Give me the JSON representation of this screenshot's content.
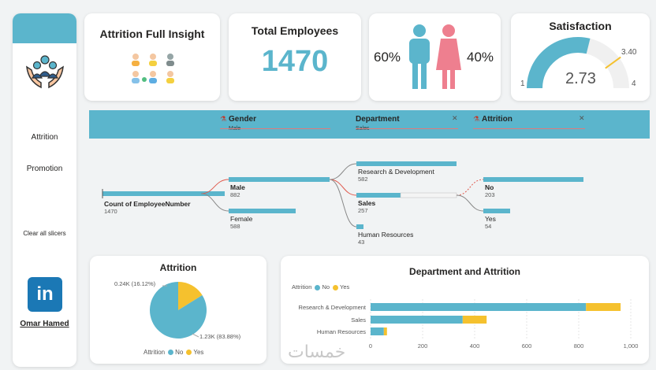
{
  "sidebar": {
    "nav_attrition": "Attrition",
    "nav_promotion": "Promotion",
    "clear_slicers": "Clear all slicers",
    "linkedin_glyph": "in",
    "author": "Omar Hamed"
  },
  "kpi": {
    "insight_title": "Attrition Full Insight",
    "total_title": "Total Employees",
    "total_value": "1470",
    "male_pct": "60%",
    "female_pct": "40%",
    "satisfaction_title": "Satisfaction",
    "satisfaction_value": "2.73",
    "satisfaction_target": "3.40",
    "satisfaction_min": "1",
    "satisfaction_max": "4"
  },
  "filters": [
    {
      "label": "Gender",
      "value": "Male"
    },
    {
      "label": "Department",
      "value": "Sales"
    },
    {
      "label": "Attrition",
      "value": ""
    }
  ],
  "tree": {
    "root_label": "Count of EmployeeNumber",
    "root_value": "1470",
    "male_label": "Male",
    "male_value": "882",
    "female_label": "Female",
    "female_value": "588",
    "rd_label": "Research & Development",
    "rd_value": "582",
    "sales_label": "Sales",
    "sales_value": "257",
    "hr_label": "Human Resources",
    "hr_value": "43",
    "no_label": "No",
    "no_value": "203",
    "yes_label": "Yes",
    "yes_value": "54"
  },
  "attrition_pie": {
    "title": "Attrition",
    "yes_label": "0.24K (16.12%)",
    "no_label": "1.23K (83.88%)",
    "legend_title": "Attrition",
    "legend_no": "No",
    "legend_yes": "Yes"
  },
  "dept_chart": {
    "title": "Department and Attrition",
    "legend_title": "Attrition",
    "legend_no": "No",
    "legend_yes": "Yes"
  },
  "watermark": "خمسات",
  "colors": {
    "teal": "#5bb5cc",
    "yellow": "#f5c12e",
    "pink": "#ee7f8f",
    "gray": "#f0f0f0"
  },
  "chart_data": [
    {
      "type": "pie",
      "title": "Attrition",
      "categories": [
        "No",
        "Yes"
      ],
      "values": [
        1233,
        237
      ],
      "percent": [
        83.88,
        16.12
      ]
    },
    {
      "type": "bar",
      "orientation": "horizontal",
      "stacked": true,
      "title": "Department and Attrition",
      "categories": [
        "Research & Development",
        "Sales",
        "Human Resources"
      ],
      "series": [
        {
          "name": "No",
          "values": [
            828,
            354,
            51
          ]
        },
        {
          "name": "Yes",
          "values": [
            133,
            92,
            12
          ]
        }
      ],
      "xlim": [
        0,
        1000
      ],
      "xticks": [
        "0",
        "200",
        "400",
        "600",
        "800",
        "1,000"
      ]
    }
  ]
}
